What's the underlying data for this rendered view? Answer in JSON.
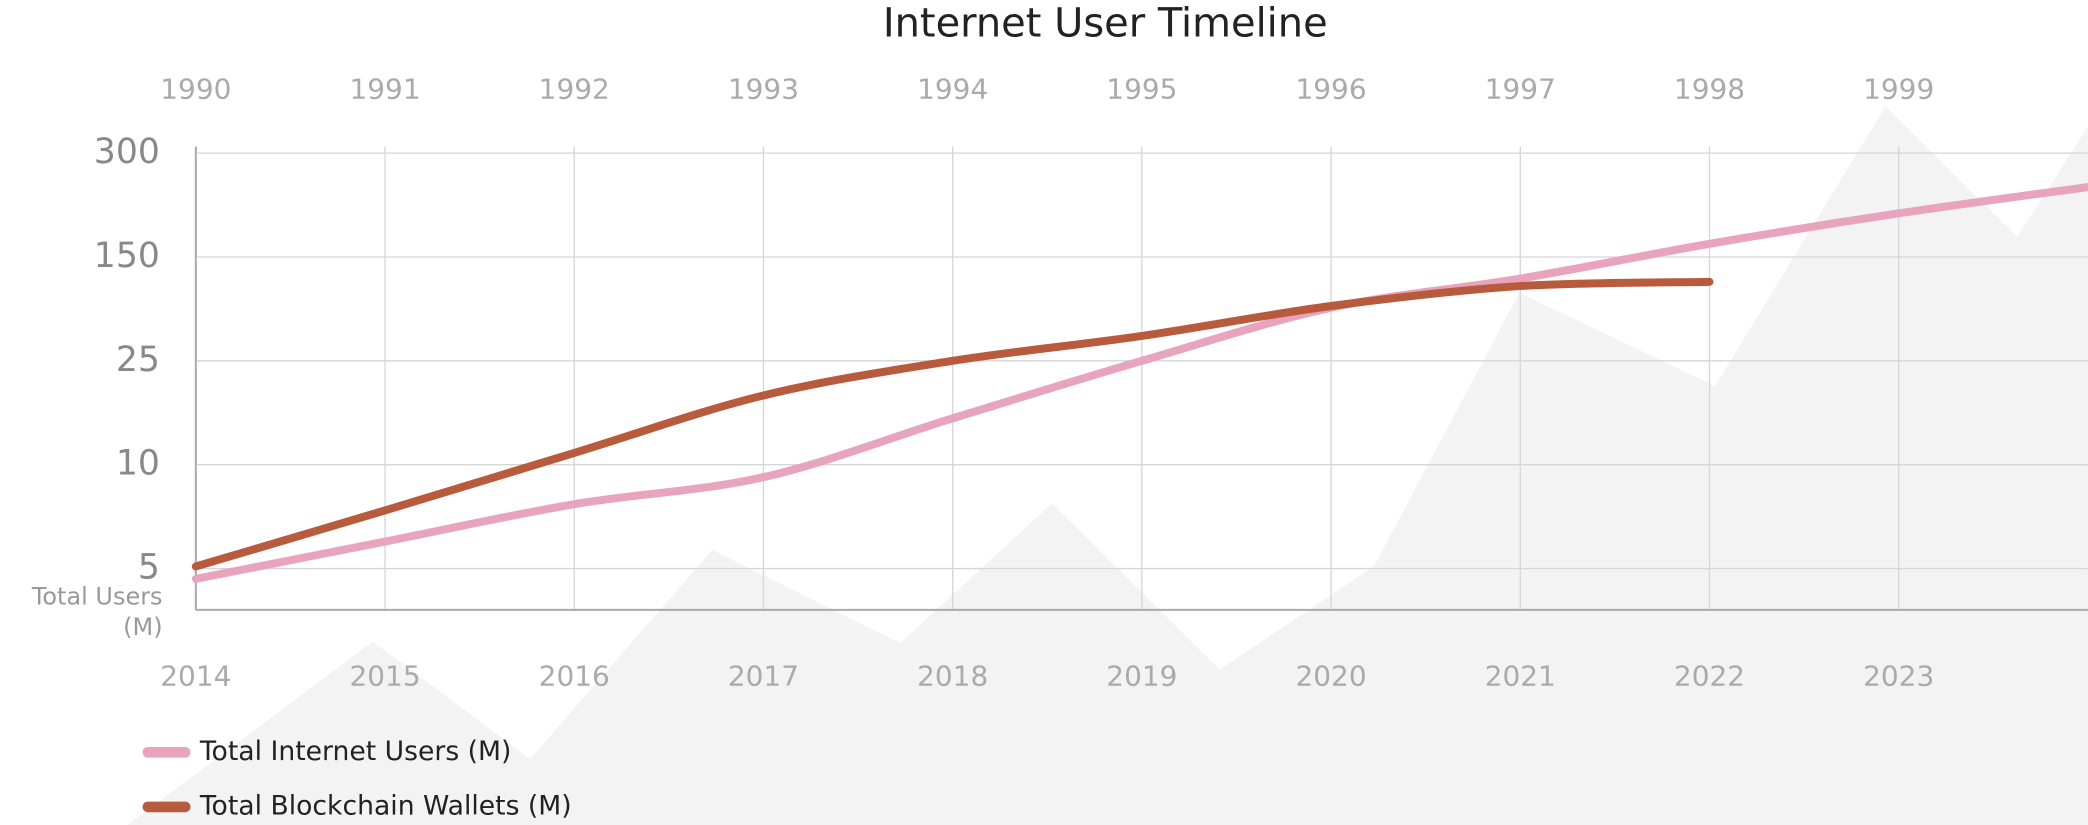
{
  "chart_data": {
    "type": "line",
    "title": "Internet User Timeline",
    "y_label": "Total Users (M)",
    "xlim": [
      2014,
      2024
    ],
    "xticks": [
      2014,
      2015,
      2016,
      2017,
      2018,
      2019,
      2020,
      2021,
      2022,
      2023
    ],
    "x2lim": [
      1990,
      2000
    ],
    "x2ticks": [
      1990,
      1991,
      1992,
      1993,
      1994,
      1995,
      1996,
      1997,
      1998,
      1999
    ],
    "ylim": [
      3,
      300
    ],
    "yticks": [
      5,
      10,
      25,
      150,
      300
    ],
    "grid": true,
    "series": [
      {
        "name": "Total Internet Users (M)",
        "color": "#e8a3bd",
        "axis": "x2",
        "x": [
          1990,
          1991,
          1992,
          1993,
          1994,
          1995,
          1996,
          1997,
          1998,
          1999,
          2000
        ],
        "values": [
          4.5,
          6.3,
          8.1,
          9.4,
          16.7,
          25,
          89,
          124,
          169,
          213,
          251
        ]
      },
      {
        "name": "Total Blockchain Wallets (M)",
        "color": "#b85a3c",
        "x": [
          2014,
          2015,
          2016,
          2017,
          2018,
          2019,
          2020,
          2021,
          2022
        ],
        "values": [
          5.1,
          7.8,
          11.7,
          20,
          25,
          55,
          91,
          115,
          120
        ]
      }
    ]
  }
}
